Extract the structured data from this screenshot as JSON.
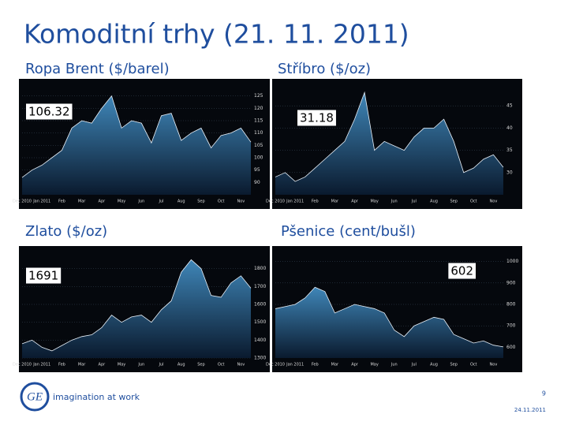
{
  "header": {
    "title": "Komoditní trhy (21. 11. 2011)"
  },
  "footer": {
    "brand": "imagination at work",
    "page": "9",
    "date": "24.11.2011"
  },
  "chart_data": [
    {
      "type": "area",
      "title": "Ropa Brent ($/barel)",
      "categories": [
        "Dec 2010",
        null,
        "Jan 2011",
        null,
        "Feb",
        null,
        "Mar",
        null,
        "Apr",
        null,
        "May",
        null,
        "Jun",
        null,
        "Jul",
        null,
        "Aug",
        null,
        "Sep",
        null,
        "Oct",
        null,
        "Nov",
        null
      ],
      "values": [
        92,
        95,
        97,
        100,
        103,
        112,
        115,
        114,
        120,
        125,
        112,
        115,
        114,
        106,
        117,
        118,
        107,
        110,
        112,
        104,
        109,
        110,
        112,
        106.32
      ],
      "ylim": [
        85,
        130
      ],
      "yticks": [
        90,
        95,
        100,
        105,
        110,
        115,
        120,
        125
      ],
      "grid": true,
      "color": "#2f6f9f"
    },
    {
      "type": "area",
      "title": "Stříbro ($/oz)",
      "categories": [
        "Dec 2010",
        null,
        "Jan 2011",
        null,
        "Feb",
        null,
        "Mar",
        null,
        "Apr",
        null,
        "May",
        null,
        "Jun",
        null,
        "Jul",
        null,
        "Aug",
        null,
        "Sep",
        null,
        "Oct",
        null,
        "Nov",
        null
      ],
      "values": [
        29,
        30,
        28,
        29,
        31,
        33,
        35,
        37,
        42,
        48,
        35,
        37,
        36,
        35,
        38,
        40,
        40,
        42,
        37,
        30,
        31,
        33,
        34,
        31.18
      ],
      "ylim": [
        25,
        50
      ],
      "yticks": [
        30,
        35,
        40,
        45
      ],
      "grid": true,
      "color": "#2f6f9f"
    },
    {
      "type": "area",
      "title": "Zlato ($/oz)",
      "categories": [
        "Dec 2010",
        null,
        "Jan 2011",
        null,
        "Feb",
        null,
        "Mar",
        null,
        "Apr",
        null,
        "May",
        null,
        "Jun",
        null,
        "Jul",
        null,
        "Aug",
        null,
        "Sep",
        null,
        "Oct",
        null,
        "Nov",
        null
      ],
      "values": [
        1380,
        1400,
        1360,
        1340,
        1370,
        1400,
        1420,
        1430,
        1470,
        1540,
        1500,
        1530,
        1540,
        1500,
        1570,
        1620,
        1780,
        1850,
        1800,
        1650,
        1640,
        1720,
        1760,
        1691
      ],
      "ylim": [
        1300,
        1900
      ],
      "yticks": [
        1300,
        1400,
        1500,
        1600,
        1700,
        1800
      ],
      "grid": true,
      "color": "#2f6f9f"
    },
    {
      "type": "area",
      "title": "Pšenice (cent/bušl)",
      "categories": [
        "Dec 2010",
        null,
        "Jan 2011",
        null,
        "Feb",
        null,
        "Mar",
        null,
        "Apr",
        null,
        "May",
        null,
        "Jun",
        null,
        "Jul",
        null,
        "Aug",
        null,
        "Sep",
        null,
        "Oct",
        null,
        "Nov",
        null
      ],
      "values": [
        780,
        790,
        800,
        830,
        880,
        860,
        760,
        780,
        800,
        790,
        780,
        760,
        680,
        650,
        700,
        720,
        740,
        730,
        660,
        640,
        620,
        630,
        610,
        602
      ],
      "ylim": [
        550,
        1050
      ],
      "yticks": [
        600,
        700,
        800,
        900,
        1000
      ],
      "grid": true,
      "color": "#2f6f9f"
    }
  ]
}
